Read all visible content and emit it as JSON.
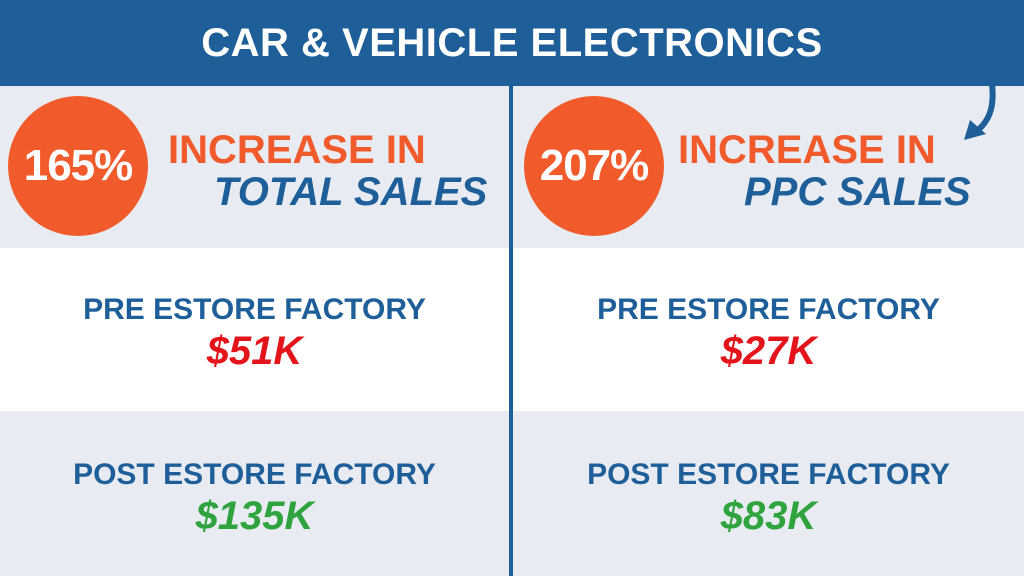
{
  "header": {
    "title": "CAR & VEHICLE ELECTRONICS"
  },
  "left": {
    "badge": "165%",
    "increase_line1": "INCREASE IN",
    "increase_line2": "TOTAL SALES",
    "pre_label": "PRE ESTORE FACTORY",
    "pre_value": "$51K",
    "post_label": "POST ESTORE FACTORY",
    "post_value": "$135K"
  },
  "right": {
    "badge": "207%",
    "increase_line1": "INCREASE IN",
    "increase_line2": "PPC SALES",
    "pre_label": "PRE ESTORE FACTORY",
    "pre_value": "$27K",
    "post_label": "POST ESTORE FACTORY",
    "post_value": "$83K"
  },
  "colors": {
    "header_blue": "#1e5e99",
    "accent_orange": "#f15a2b",
    "pre_red": "#e4141b",
    "post_green": "#2fa33d"
  },
  "icons": {
    "decor_arrow": "curved-arrow-icon"
  }
}
